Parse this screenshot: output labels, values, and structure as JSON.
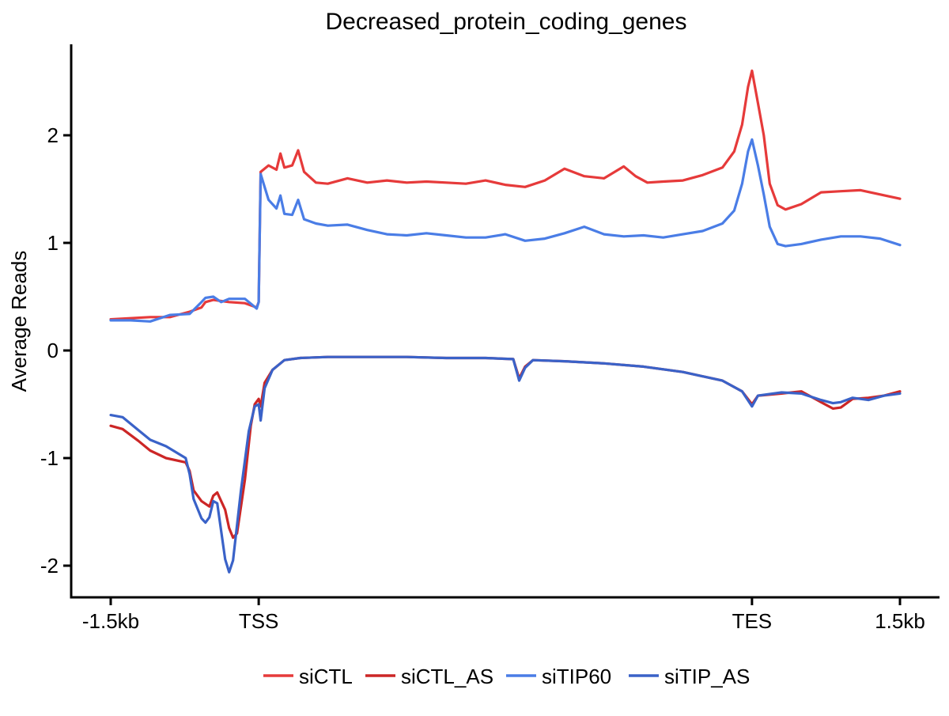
{
  "chart_data": {
    "type": "line",
    "title": "Decreased_protein_coding_genes",
    "xlabel": "",
    "ylabel": "Average Reads",
    "ylim": [
      -2.3,
      2.85
    ],
    "yticks": [
      -2,
      -1,
      0,
      1,
      2
    ],
    "xlim": [
      -0.1,
      2.1
    ],
    "x_tick_positions": [
      0,
      0.375,
      1.625,
      2
    ],
    "x_tick_labels": [
      "-1.5kb",
      "TSS",
      "TES",
      "1.5kb"
    ],
    "grid": false,
    "legend_position": "bottom",
    "colors": {
      "siCTL": "#e63a3a",
      "siCTL_AS": "#cc2626",
      "siTIP60": "#4a7de6",
      "siTIP_AS": "#3a62c8"
    },
    "series": [
      {
        "name": "siCTL",
        "color": "#e63a3a",
        "points": [
          [
            0,
            0.29
          ],
          [
            0.05,
            0.3
          ],
          [
            0.1,
            0.31
          ],
          [
            0.15,
            0.31
          ],
          [
            0.2,
            0.36
          ],
          [
            0.23,
            0.4
          ],
          [
            0.24,
            0.45
          ],
          [
            0.26,
            0.47
          ],
          [
            0.3,
            0.45
          ],
          [
            0.34,
            0.44
          ],
          [
            0.37,
            0.4
          ],
          [
            0.375,
            0.45
          ],
          [
            0.38,
            1.66
          ],
          [
            0.4,
            1.72
          ],
          [
            0.42,
            1.68
          ],
          [
            0.43,
            1.83
          ],
          [
            0.44,
            1.7
          ],
          [
            0.46,
            1.72
          ],
          [
            0.475,
            1.86
          ],
          [
            0.49,
            1.66
          ],
          [
            0.52,
            1.56
          ],
          [
            0.55,
            1.55
          ],
          [
            0.6,
            1.6
          ],
          [
            0.65,
            1.56
          ],
          [
            0.7,
            1.58
          ],
          [
            0.75,
            1.56
          ],
          [
            0.8,
            1.57
          ],
          [
            0.85,
            1.56
          ],
          [
            0.9,
            1.55
          ],
          [
            0.95,
            1.58
          ],
          [
            1.0,
            1.54
          ],
          [
            1.05,
            1.52
          ],
          [
            1.1,
            1.58
          ],
          [
            1.15,
            1.69
          ],
          [
            1.2,
            1.62
          ],
          [
            1.25,
            1.6
          ],
          [
            1.3,
            1.71
          ],
          [
            1.33,
            1.62
          ],
          [
            1.36,
            1.56
          ],
          [
            1.4,
            1.57
          ],
          [
            1.45,
            1.58
          ],
          [
            1.5,
            1.63
          ],
          [
            1.55,
            1.7
          ],
          [
            1.58,
            1.85
          ],
          [
            1.6,
            2.1
          ],
          [
            1.615,
            2.45
          ],
          [
            1.625,
            2.6
          ],
          [
            1.64,
            2.3
          ],
          [
            1.655,
            2.0
          ],
          [
            1.67,
            1.55
          ],
          [
            1.69,
            1.35
          ],
          [
            1.71,
            1.31
          ],
          [
            1.75,
            1.36
          ],
          [
            1.8,
            1.47
          ],
          [
            1.85,
            1.48
          ],
          [
            1.9,
            1.49
          ],
          [
            1.95,
            1.45
          ],
          [
            2.0,
            1.41
          ]
        ]
      },
      {
        "name": "siCTL_AS",
        "color": "#cc2626",
        "points": [
          [
            0,
            -0.7
          ],
          [
            0.03,
            -0.73
          ],
          [
            0.07,
            -0.84
          ],
          [
            0.1,
            -0.93
          ],
          [
            0.14,
            -1.0
          ],
          [
            0.19,
            -1.04
          ],
          [
            0.2,
            -1.12
          ],
          [
            0.21,
            -1.3
          ],
          [
            0.23,
            -1.4
          ],
          [
            0.25,
            -1.45
          ],
          [
            0.26,
            -1.35
          ],
          [
            0.27,
            -1.32
          ],
          [
            0.29,
            -1.48
          ],
          [
            0.3,
            -1.65
          ],
          [
            0.31,
            -1.74
          ],
          [
            0.32,
            -1.7
          ],
          [
            0.34,
            -1.2
          ],
          [
            0.355,
            -0.7
          ],
          [
            0.365,
            -0.5
          ],
          [
            0.375,
            -0.45
          ],
          [
            0.38,
            -0.52
          ],
          [
            0.39,
            -0.3
          ],
          [
            0.41,
            -0.18
          ],
          [
            0.44,
            -0.09
          ],
          [
            0.48,
            -0.07
          ],
          [
            0.55,
            -0.06
          ],
          [
            0.65,
            -0.06
          ],
          [
            0.75,
            -0.06
          ],
          [
            0.85,
            -0.07
          ],
          [
            0.95,
            -0.07
          ],
          [
            1.02,
            -0.08
          ],
          [
            1.035,
            -0.26
          ],
          [
            1.05,
            -0.15
          ],
          [
            1.07,
            -0.09
          ],
          [
            1.15,
            -0.1
          ],
          [
            1.25,
            -0.12
          ],
          [
            1.35,
            -0.15
          ],
          [
            1.45,
            -0.2
          ],
          [
            1.55,
            -0.28
          ],
          [
            1.6,
            -0.38
          ],
          [
            1.625,
            -0.5
          ],
          [
            1.64,
            -0.42
          ],
          [
            1.7,
            -0.4
          ],
          [
            1.75,
            -0.38
          ],
          [
            1.8,
            -0.48
          ],
          [
            1.83,
            -0.54
          ],
          [
            1.85,
            -0.53
          ],
          [
            1.88,
            -0.45
          ],
          [
            1.92,
            -0.44
          ],
          [
            1.96,
            -0.42
          ],
          [
            2.0,
            -0.38
          ]
        ]
      },
      {
        "name": "siTIP60",
        "color": "#4a7de6",
        "points": [
          [
            0,
            0.28
          ],
          [
            0.05,
            0.28
          ],
          [
            0.1,
            0.27
          ],
          [
            0.15,
            0.33
          ],
          [
            0.2,
            0.34
          ],
          [
            0.23,
            0.45
          ],
          [
            0.24,
            0.49
          ],
          [
            0.26,
            0.5
          ],
          [
            0.28,
            0.45
          ],
          [
            0.3,
            0.48
          ],
          [
            0.34,
            0.48
          ],
          [
            0.37,
            0.39
          ],
          [
            0.375,
            0.45
          ],
          [
            0.38,
            1.64
          ],
          [
            0.4,
            1.4
          ],
          [
            0.42,
            1.32
          ],
          [
            0.43,
            1.44
          ],
          [
            0.44,
            1.27
          ],
          [
            0.46,
            1.26
          ],
          [
            0.475,
            1.4
          ],
          [
            0.49,
            1.22
          ],
          [
            0.52,
            1.18
          ],
          [
            0.55,
            1.16
          ],
          [
            0.6,
            1.17
          ],
          [
            0.65,
            1.12
          ],
          [
            0.7,
            1.08
          ],
          [
            0.75,
            1.07
          ],
          [
            0.8,
            1.09
          ],
          [
            0.85,
            1.07
          ],
          [
            0.9,
            1.05
          ],
          [
            0.95,
            1.05
          ],
          [
            1.0,
            1.08
          ],
          [
            1.05,
            1.02
          ],
          [
            1.1,
            1.04
          ],
          [
            1.15,
            1.09
          ],
          [
            1.2,
            1.15
          ],
          [
            1.25,
            1.08
          ],
          [
            1.3,
            1.06
          ],
          [
            1.35,
            1.07
          ],
          [
            1.4,
            1.05
          ],
          [
            1.45,
            1.08
          ],
          [
            1.5,
            1.11
          ],
          [
            1.55,
            1.18
          ],
          [
            1.58,
            1.3
          ],
          [
            1.6,
            1.55
          ],
          [
            1.615,
            1.85
          ],
          [
            1.625,
            1.96
          ],
          [
            1.64,
            1.72
          ],
          [
            1.655,
            1.45
          ],
          [
            1.67,
            1.15
          ],
          [
            1.69,
            0.99
          ],
          [
            1.71,
            0.97
          ],
          [
            1.75,
            0.99
          ],
          [
            1.8,
            1.03
          ],
          [
            1.85,
            1.06
          ],
          [
            1.9,
            1.06
          ],
          [
            1.95,
            1.04
          ],
          [
            2.0,
            0.98
          ]
        ]
      },
      {
        "name": "siTIP_AS",
        "color": "#3a62c8",
        "points": [
          [
            0,
            -0.6
          ],
          [
            0.03,
            -0.62
          ],
          [
            0.07,
            -0.74
          ],
          [
            0.1,
            -0.83
          ],
          [
            0.14,
            -0.89
          ],
          [
            0.19,
            -1.0
          ],
          [
            0.2,
            -1.15
          ],
          [
            0.21,
            -1.38
          ],
          [
            0.23,
            -1.56
          ],
          [
            0.24,
            -1.6
          ],
          [
            0.25,
            -1.55
          ],
          [
            0.26,
            -1.4
          ],
          [
            0.27,
            -1.42
          ],
          [
            0.28,
            -1.68
          ],
          [
            0.29,
            -1.94
          ],
          [
            0.3,
            -2.06
          ],
          [
            0.31,
            -1.95
          ],
          [
            0.33,
            -1.3
          ],
          [
            0.35,
            -0.75
          ],
          [
            0.365,
            -0.52
          ],
          [
            0.375,
            -0.5
          ],
          [
            0.38,
            -0.65
          ],
          [
            0.39,
            -0.35
          ],
          [
            0.41,
            -0.18
          ],
          [
            0.44,
            -0.09
          ],
          [
            0.48,
            -0.07
          ],
          [
            0.55,
            -0.06
          ],
          [
            0.65,
            -0.06
          ],
          [
            0.75,
            -0.06
          ],
          [
            0.85,
            -0.07
          ],
          [
            0.95,
            -0.07
          ],
          [
            1.02,
            -0.08
          ],
          [
            1.035,
            -0.28
          ],
          [
            1.05,
            -0.16
          ],
          [
            1.07,
            -0.09
          ],
          [
            1.15,
            -0.1
          ],
          [
            1.25,
            -0.12
          ],
          [
            1.35,
            -0.15
          ],
          [
            1.45,
            -0.2
          ],
          [
            1.55,
            -0.28
          ],
          [
            1.6,
            -0.38
          ],
          [
            1.625,
            -0.52
          ],
          [
            1.64,
            -0.42
          ],
          [
            1.7,
            -0.39
          ],
          [
            1.75,
            -0.4
          ],
          [
            1.8,
            -0.46
          ],
          [
            1.83,
            -0.49
          ],
          [
            1.85,
            -0.48
          ],
          [
            1.88,
            -0.44
          ],
          [
            1.92,
            -0.46
          ],
          [
            1.96,
            -0.42
          ],
          [
            2.0,
            -0.4
          ]
        ]
      }
    ]
  }
}
